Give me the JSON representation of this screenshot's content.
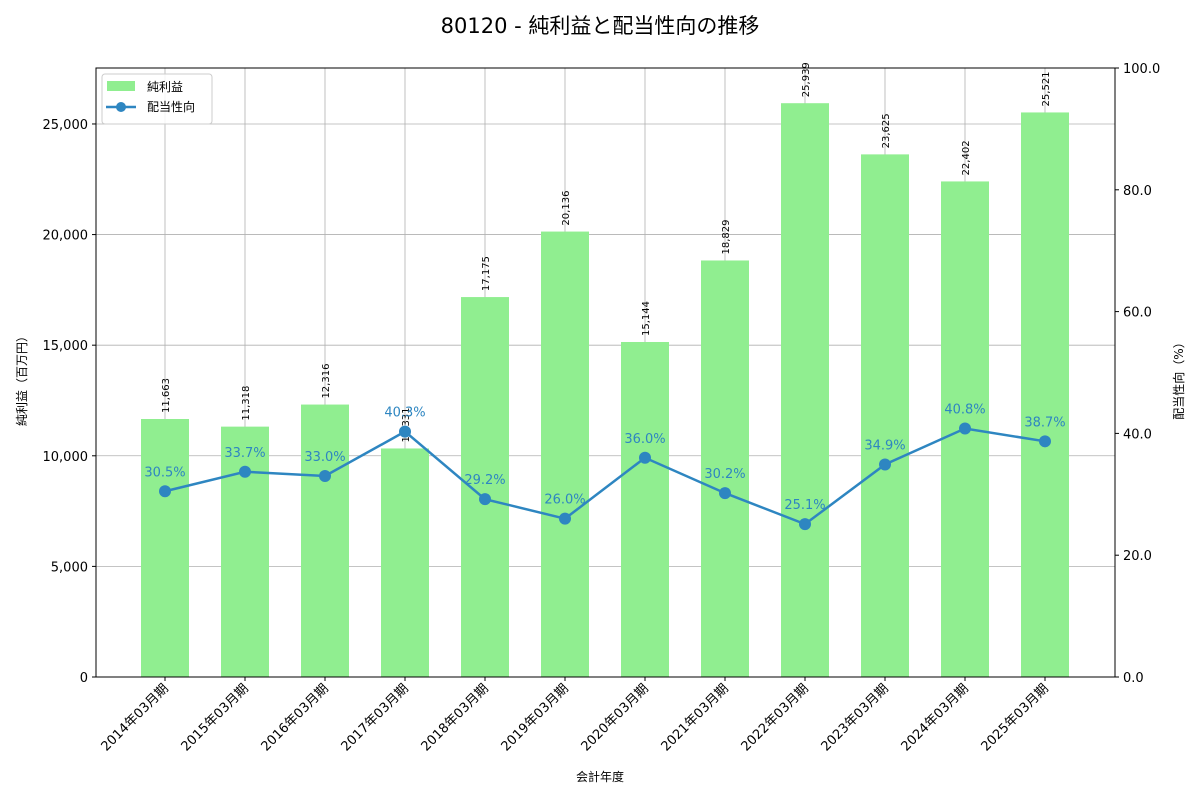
{
  "chart_data": {
    "type": "bar+line",
    "title": "80120 - 純利益と配当性向の推移",
    "xlabel": "会計年度",
    "ylabel_left": "純利益（百万円）",
    "ylabel_right": "配当性向（%）",
    "categories": [
      "2014年03月期",
      "2015年03月期",
      "2016年03月期",
      "2017年03月期",
      "2018年03月期",
      "2019年03月期",
      "2020年03月期",
      "2021年03月期",
      "2022年03月期",
      "2023年03月期",
      "2024年03月期",
      "2025年03月期"
    ],
    "series": [
      {
        "name": "純利益",
        "type": "bar",
        "axis": "left",
        "color": "#90ee90",
        "values": [
          11663,
          11318,
          12316,
          10331,
          17175,
          20136,
          15144,
          18829,
          25939,
          23625,
          22402,
          25521
        ],
        "labels": [
          "11,663",
          "11,318",
          "12,316",
          "10,331",
          "17,175",
          "20,136",
          "15,144",
          "18,829",
          "25,939",
          "23,625",
          "22,402",
          "25,521"
        ]
      },
      {
        "name": "配当性向",
        "type": "line",
        "axis": "right",
        "color": "#2e86c1",
        "values": [
          30.5,
          33.7,
          33.0,
          40.3,
          29.2,
          26.0,
          36.0,
          30.2,
          25.1,
          34.9,
          40.8,
          38.7
        ],
        "labels": [
          "30.5%",
          "33.7%",
          "33.0%",
          "40.3%",
          "29.2%",
          "26.0%",
          "36.0%",
          "30.2%",
          "25.1%",
          "34.9%",
          "40.8%",
          "38.7%"
        ]
      }
    ],
    "ylim_left": [
      0,
      27530
    ],
    "yticks_left": [
      "0",
      "5,000",
      "10,000",
      "15,000",
      "20,000",
      "25,000"
    ],
    "ylim_right": [
      0,
      100
    ],
    "yticks_right": [
      "0.0",
      "20.0",
      "40.0",
      "60.0",
      "80.0",
      "100.0"
    ],
    "grid": true,
    "legend_position": "upper left"
  }
}
